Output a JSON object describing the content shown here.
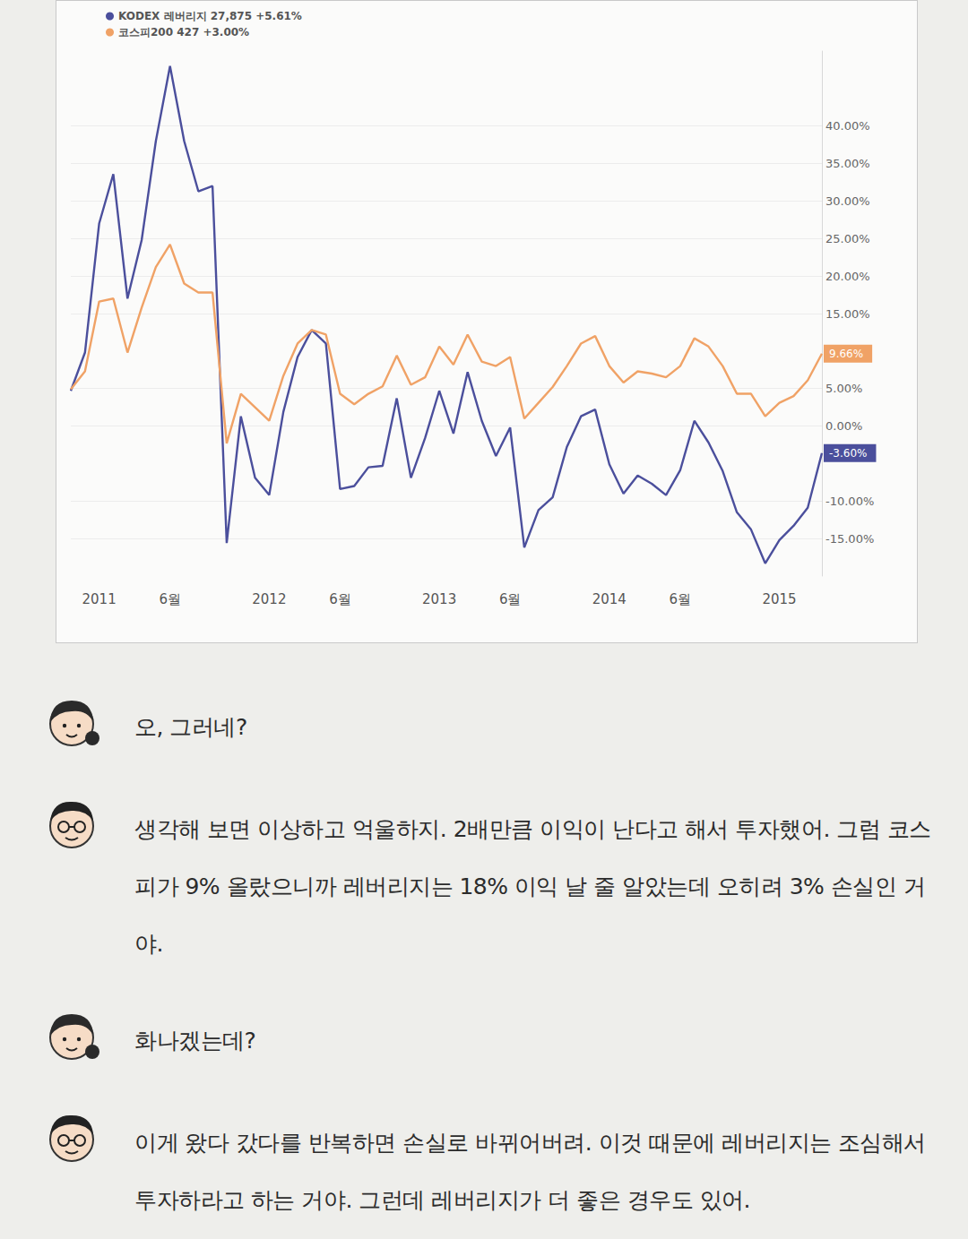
{
  "chart_data": {
    "type": "line",
    "categories": [
      null,
      null,
      "2011",
      null,
      null,
      null,
      null,
      "6월",
      null,
      null,
      null,
      null,
      null,
      null,
      "2012",
      null,
      null,
      null,
      null,
      "6월",
      null,
      null,
      null,
      null,
      null,
      null,
      "2013",
      null,
      null,
      null,
      null,
      "6월",
      null,
      null,
      null,
      null,
      null,
      null,
      "2014",
      null,
      null,
      null,
      null,
      "6월",
      null,
      null,
      null,
      null,
      null,
      null,
      "2015",
      null,
      null,
      null
    ],
    "series": [
      {
        "name": "KODEX 레버리지 27,875 +5.61%",
        "color": "#4b4f9c",
        "end_label": "-3.60%",
        "values": [
          4.7,
          9.8,
          27,
          33.6,
          17.0,
          24.8,
          38,
          48,
          38,
          31.3,
          32.0,
          -15.6,
          1.3,
          -6.9,
          -9.2,
          1.9,
          9.2,
          12.8,
          11.0,
          -8.4,
          -8.0,
          -5.5,
          -5.3,
          3.7,
          -6.9,
          -1.6,
          4.7,
          -1.0,
          7.2,
          0.7,
          -4.0,
          -0.2,
          -16.2,
          -11.2,
          -9.5,
          -2.8,
          1.3,
          2.2,
          -5.1,
          -9.0,
          -6.6,
          -7.7,
          -9.2,
          -5.9,
          0.7,
          -2.2,
          -6.0,
          -11.5,
          -13.8,
          -18.3,
          -15.2,
          -13.3,
          -10.9,
          -3.6
        ]
      },
      {
        "name": "코스피200 427 +3.00%",
        "color": "#f0a266",
        "end_label": "9.66%",
        "values": [
          4.9,
          7.3,
          16.6,
          17.0,
          9.8,
          15.8,
          21.2,
          24.2,
          19.0,
          17.8,
          17.8,
          -2.3,
          4.3,
          2.5,
          0.7,
          6.7,
          11.0,
          12.8,
          12.2,
          4.3,
          2.9,
          4.3,
          5.3,
          9.4,
          5.5,
          6.5,
          10.6,
          8.2,
          12.2,
          8.6,
          8.0,
          9.2,
          1.0,
          3.1,
          5.2,
          8.0,
          11.0,
          12.0,
          8.0,
          5.8,
          7.3,
          7.0,
          6.5,
          8.0,
          11.7,
          10.6,
          8.0,
          4.3,
          4.3,
          1.3,
          3.1,
          4.0,
          6.1,
          9.66
        ]
      }
    ],
    "ylim": [
      -20,
      50
    ],
    "yticks": [
      {
        "value": 40,
        "label": "40.00%"
      },
      {
        "value": 35,
        "label": "35.00%"
      },
      {
        "value": 30,
        "label": "30.00%"
      },
      {
        "value": 25,
        "label": "25.00%"
      },
      {
        "value": 20,
        "label": "20.00%"
      },
      {
        "value": 15,
        "label": "15.00%"
      },
      {
        "value": 5,
        "label": "5.00%"
      },
      {
        "value": 0,
        "label": "0.00%"
      },
      {
        "value": -10,
        "label": "-10.00%"
      },
      {
        "value": -15,
        "label": "-15.00%"
      }
    ],
    "grid": true,
    "legend": "top-left",
    "marker": "none",
    "line_style": "solid"
  },
  "dialogue": [
    "오, 그러네?",
    "생각해 보면 이상하고 억울하지. 2배만큼 이익이 난다고 해서 투자했어. 그럼 코스피가 9% 올랐으니까 레버리지는 18% 이익 날 줄 알았는데 오히려 3% 손실인 거야.",
    "화나겠는데?",
    "이게 왔다 갔다를 반복하면 손실로 바뀌어버려. 이것 때문에 레버리지는 조심해서 투자하라고 하는 거야. 그런데 레버리지가 더 좋은 경우도 있어."
  ]
}
